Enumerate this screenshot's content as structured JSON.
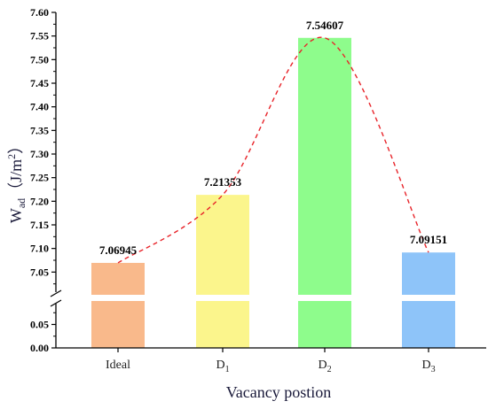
{
  "chart_data": {
    "type": "bar",
    "xlabel": "Vacancy postion",
    "ylabel": {
      "main": "W",
      "sub": "ad",
      "unit": "（J/m",
      "sup": "2",
      "close": "）"
    },
    "categories": [
      {
        "main": "Ideal",
        "sub": ""
      },
      {
        "main": "D",
        "sub": "1"
      },
      {
        "main": "D",
        "sub": "2"
      },
      {
        "main": "D",
        "sub": "3"
      }
    ],
    "values": [
      7.06945,
      7.21353,
      7.54607,
      7.09151
    ],
    "value_labels": [
      "7.06945",
      "7.21353",
      "7.54607",
      "7.09151"
    ],
    "colors": [
      "#f9b98b",
      "#fbf58c",
      "#8efc8c",
      "#8ec4f9"
    ],
    "broken_axis": true,
    "lower_segment": {
      "ylim": [
        0,
        0.1
      ],
      "ticks": [
        "0.00",
        "0.05"
      ]
    },
    "upper_segment": {
      "ylim": [
        7.0,
        7.6
      ],
      "ticks": [
        "7.05",
        "7.10",
        "7.15",
        "7.20",
        "7.25",
        "7.30",
        "7.35",
        "7.40",
        "7.45",
        "7.50",
        "7.55",
        "7.60"
      ]
    },
    "trend_line": {
      "style": "dashed",
      "color": "#e8242a"
    }
  }
}
